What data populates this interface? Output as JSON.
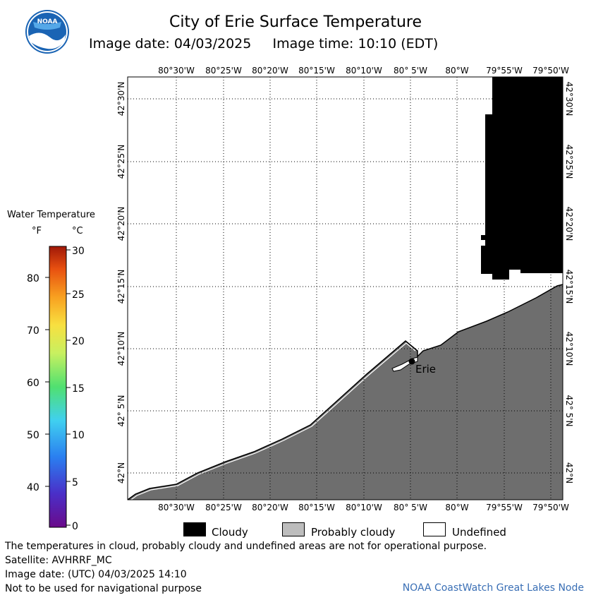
{
  "header": {
    "title": "City of Erie Surface Temperature",
    "subtitle": "Image date: 04/03/2025     Image time: 10:10 (EDT)",
    "logo_text": "NOAA"
  },
  "map": {
    "lon_labels": [
      "80°30'W",
      "80°25'W",
      "80°20'W",
      "80°15'W",
      "80°10'W",
      "80° 5'W",
      "80°W",
      "79°55'W",
      "79°50'W"
    ],
    "lat_labels": [
      "42°30'N",
      "42°25'N",
      "42°20'N",
      "42°15'N",
      "42°10'N",
      "42° 5'N",
      "42°N"
    ],
    "city_label": "Erie",
    "colors": {
      "cloudy": "#000000",
      "probably_cloudy": "#6e6e6e",
      "land": "#6e6e6e",
      "undefined": "#ffffff"
    }
  },
  "legend": {
    "title": "Water Temperature",
    "unit_f": "°F",
    "unit_c": "°C",
    "f_ticks": [
      "80",
      "70",
      "60",
      "50",
      "40"
    ],
    "c_ticks": [
      "30",
      "25",
      "20",
      "15",
      "10",
      "5",
      "0"
    ]
  },
  "key": {
    "cloudy": "Cloudy",
    "probably_cloudy": "Probably cloudy",
    "undefined": "Undefined"
  },
  "footer": {
    "line1": "The temperatures in cloud, probably cloudy and undefined areas are not for operational purpose.",
    "line2": "Satellite: AVHRRF_MC",
    "line3": "Image date: (UTC) 04/03/2025  14:10",
    "line4": "Not to be used for navigational purpose",
    "credit": "NOAA CoastWatch Great Lakes Node"
  }
}
